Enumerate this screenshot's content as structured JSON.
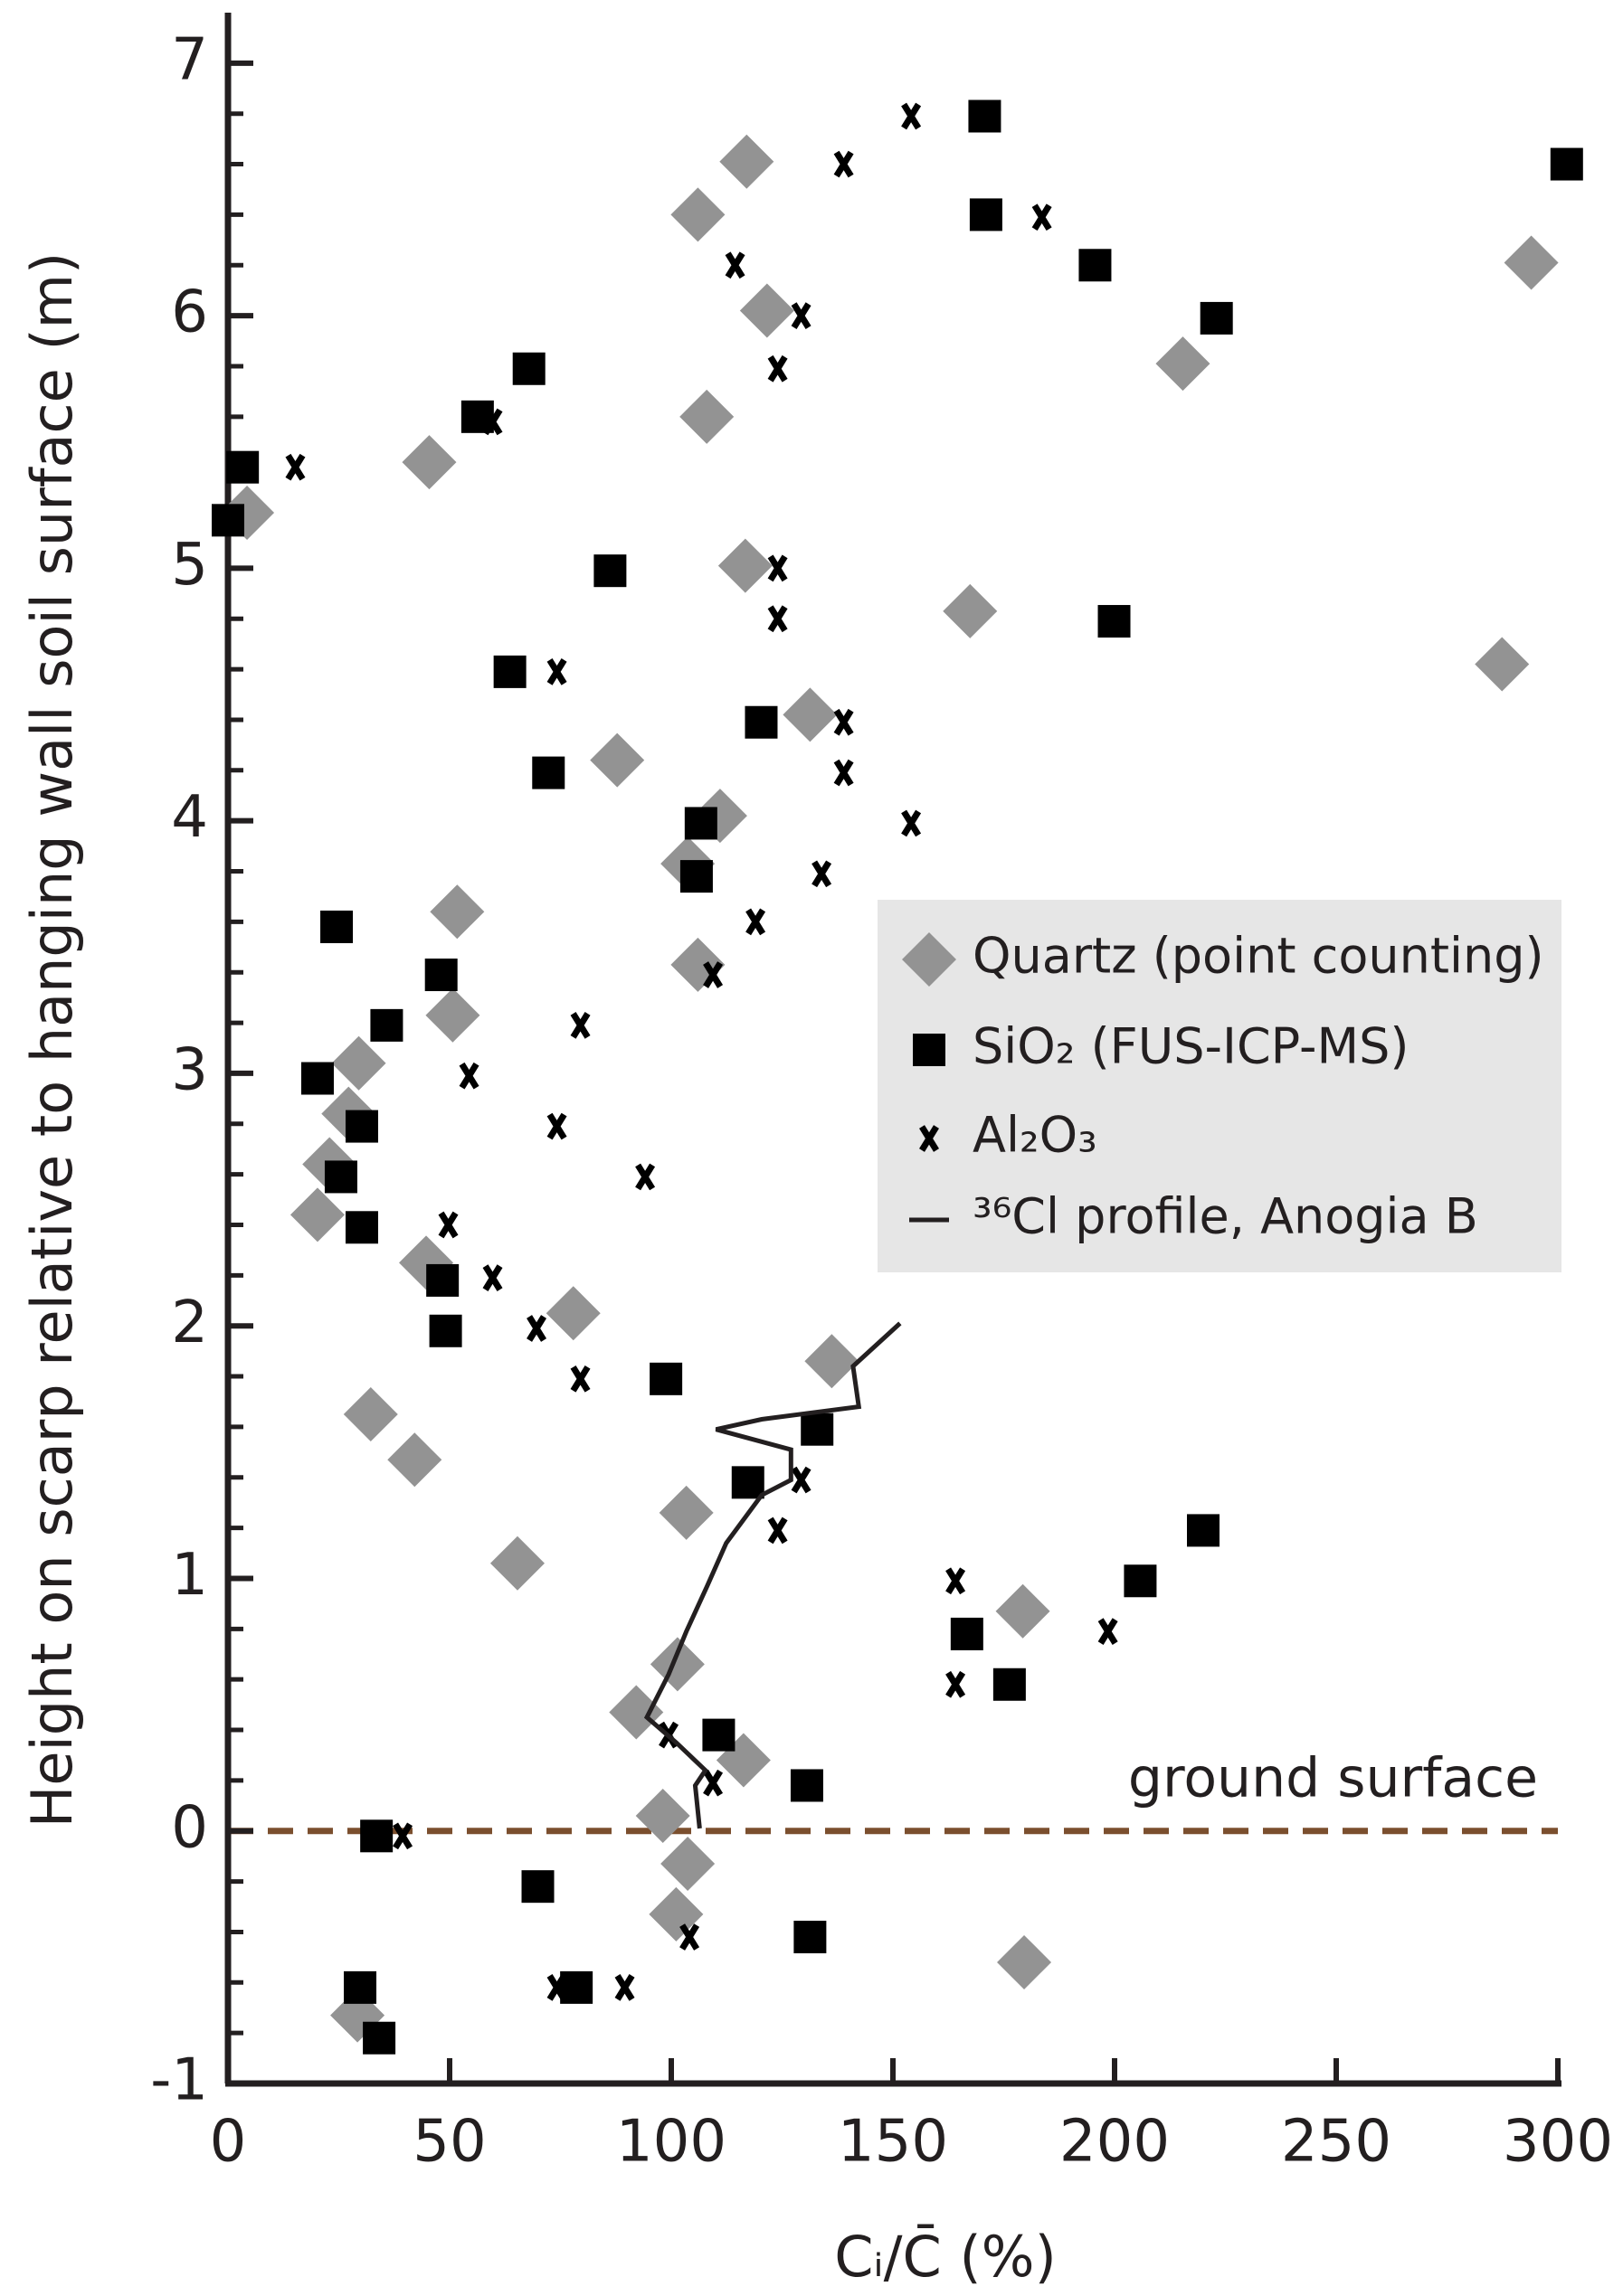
{
  "chart_data": {
    "type": "scatter",
    "xlabel": "Cᵢ/C̄ (%)",
    "ylabel": "Height on scarp relative to hanging wall soil surface (m)",
    "xlim": [
      0,
      300
    ],
    "ylim": [
      -1,
      7.2
    ],
    "xticks": [
      0,
      50,
      100,
      150,
      200,
      250,
      300
    ],
    "yticks": [
      -1,
      0,
      1,
      2,
      3,
      4,
      5,
      6,
      7
    ],
    "yminorticks": [
      -0.8,
      -0.6,
      -0.4,
      -0.2,
      0.2,
      0.4,
      0.6,
      0.8,
      1.2,
      1.4,
      1.6,
      1.8,
      2.2,
      2.4,
      2.6,
      2.8,
      3.2,
      3.4,
      3.6,
      3.8,
      4.2,
      4.4,
      4.6,
      4.8,
      5.2,
      5.4,
      5.6,
      5.8,
      6.2,
      6.4,
      6.6,
      6.8
    ],
    "hline": {
      "y": 0,
      "color": "#7b4f2e",
      "label": "ground surface"
    },
    "legend": "right",
    "series": [
      {
        "name": "Quartz (point counting)",
        "marker": "diamond",
        "color": "#939393",
        "x": [
          117,
          106,
          121.6,
          294,
          215.4,
          108,
          45.4,
          4.3,
          116.7,
          167.4,
          287.4,
          131.3,
          87.8,
          111,
          103.7,
          51.7,
          106,
          50.7,
          29.5,
          27.2,
          22.9,
          20.2,
          44.7,
          77.9,
          136.2,
          32.2,
          42.1,
          103.4,
          65.3,
          179.3,
          101.4,
          92.1,
          116.3,
          98.1,
          103.7,
          101.1,
          179.6,
          29.2
        ],
        "y": [
          6.61,
          6.4,
          6.02,
          6.21,
          5.81,
          5.6,
          5.42,
          5.22,
          5.01,
          4.83,
          4.62,
          4.42,
          4.24,
          4.02,
          3.83,
          3.64,
          3.43,
          3.23,
          3.04,
          2.84,
          2.64,
          2.44,
          2.25,
          2.05,
          1.86,
          1.65,
          1.47,
          1.26,
          1.06,
          0.87,
          0.66,
          0.47,
          0.28,
          0.06,
          -0.13,
          -0.33,
          -0.52,
          -0.73
        ]
      },
      {
        "name": "SiO₂ (FUS-ICP-MS)",
        "marker": "square",
        "color": "#000000",
        "x": [
          170.7,
          302,
          171,
          195.6,
          223,
          67.9,
          56.3,
          3.3,
          0,
          86.2,
          199.9,
          63.6,
          120.3,
          72.3,
          106.7,
          105.7,
          24.5,
          48.1,
          35.8,
          20.2,
          30.2,
          25.5,
          30.2,
          48.4,
          49.1,
          98.8,
          132.9,
          117.3,
          220,
          205.8,
          166.7,
          176.3,
          110.7,
          130.6,
          33.5,
          69.9,
          131.3,
          29.8,
          78.6,
          34.1
        ],
        "y": [
          6.79,
          6.6,
          6.4,
          6.2,
          5.99,
          5.79,
          5.6,
          5.4,
          5.19,
          4.99,
          4.79,
          4.59,
          4.39,
          4.19,
          3.99,
          3.78,
          3.58,
          3.39,
          3.19,
          2.98,
          2.79,
          2.59,
          2.39,
          2.18,
          1.98,
          1.79,
          1.59,
          1.38,
          1.19,
          0.99,
          0.78,
          0.58,
          0.38,
          0.18,
          -0.02,
          -0.22,
          -0.42,
          -0.62,
          -0.62,
          -0.82
        ]
      },
      {
        "name": "Al₂O₃",
        "marker": "x",
        "color": "#000000",
        "x": [
          154.1,
          138.9,
          183.6,
          114.4,
          129.3,
          124,
          59.7,
          15.2,
          124,
          124,
          74.2,
          138.9,
          138.9,
          154.1,
          133.9,
          119,
          109.4,
          79.5,
          54.4,
          74.2,
          94.1,
          49.7,
          59.7,
          69.6,
          79.5,
          129.3,
          124,
          164.1,
          198.5,
          164.1,
          99.4,
          109.4,
          39.4,
          104.1,
          74.2,
          89.5
        ],
        "y": [
          6.79,
          6.6,
          6.39,
          6.2,
          6,
          5.79,
          5.58,
          5.4,
          5,
          4.8,
          4.59,
          4.39,
          4.19,
          3.99,
          3.79,
          3.6,
          3.39,
          3.19,
          2.99,
          2.79,
          2.59,
          2.4,
          2.19,
          1.99,
          1.79,
          1.39,
          1.19,
          0.99,
          0.79,
          0.58,
          0.38,
          0.19,
          -0.02,
          -0.42,
          -0.62,
          -0.62
        ]
      },
      {
        "name": "³⁶Cl profile, Anogia B",
        "marker": "line",
        "color": "#231f20",
        "x": [
          151.6,
          141,
          142.3,
          120.4,
          110.1,
          127,
          127,
          120.4,
          112.4,
          108.1,
          103.4,
          99.4,
          94.5,
          101.1,
          107.7,
          105.4,
          106.4
        ],
        "y": [
          2.01,
          1.84,
          1.68,
          1.63,
          1.59,
          1.51,
          1.39,
          1.33,
          1.14,
          0.97,
          0.79,
          0.62,
          0.45,
          0.35,
          0.24,
          0.18,
          0.01
        ]
      }
    ]
  }
}
